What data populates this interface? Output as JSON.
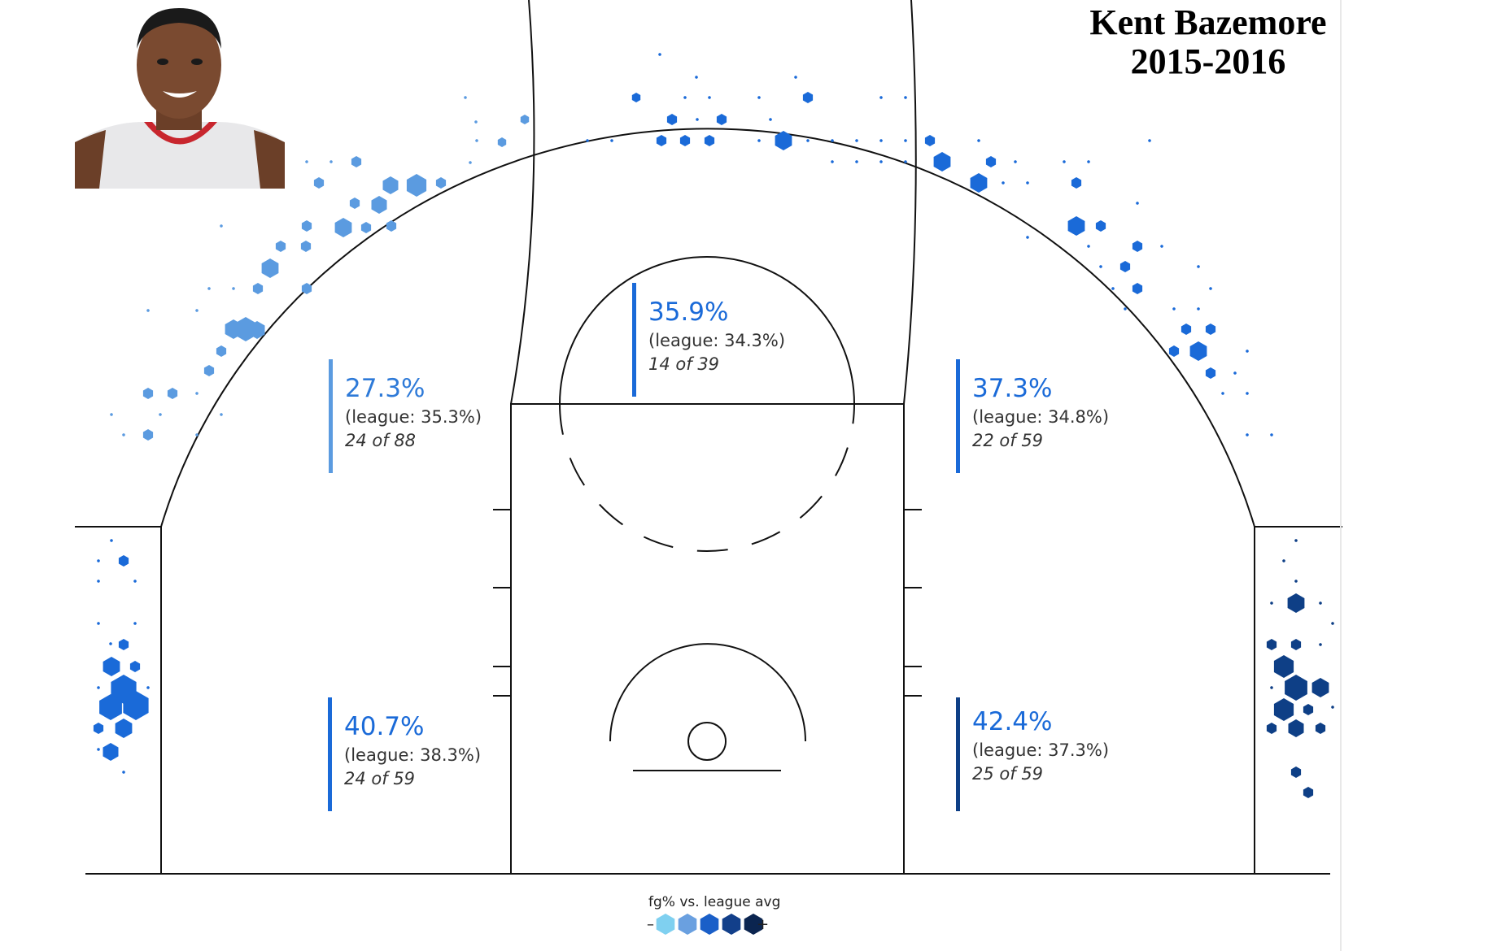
{
  "title": {
    "player": "Kent Bazemore",
    "season": "2015-2016"
  },
  "legend": {
    "title": "fg% vs. league avg",
    "minus": "–",
    "plus": "+",
    "colors": [
      "#7fd0f0",
      "#6aa0e0",
      "#1a5fc8",
      "#123f8a",
      "#0b2550"
    ]
  },
  "chart_data": {
    "type": "scatter",
    "zones": [
      {
        "id": "left-wing-three",
        "fg_pct": "27.3%",
        "league": "(league: 35.3%)",
        "made": "24 of 88",
        "color": "#5b9be0"
      },
      {
        "id": "top-key",
        "fg_pct": "35.9%",
        "league": "(league: 34.3%)",
        "made": "14 of 39",
        "color": "#1a6ad8"
      },
      {
        "id": "right-wing-three",
        "fg_pct": "37.3%",
        "league": "(league: 34.8%)",
        "made": "22 of 59",
        "color": "#1a6ad8"
      },
      {
        "id": "left-corner-three",
        "fg_pct": "40.7%",
        "league": "(league: 38.3%)",
        "made": "24 of 59",
        "color": "#1a6ad8"
      },
      {
        "id": "right-corner-three",
        "fg_pct": "42.4%",
        "league": "(league: 37.3%)",
        "made": "25 of 59",
        "color": "#0e3f86"
      }
    ]
  },
  "colors": {
    "light": "#5b9be0",
    "mid": "#1a6ad8",
    "dark": "#0e3f86",
    "court_line": "#111111"
  }
}
